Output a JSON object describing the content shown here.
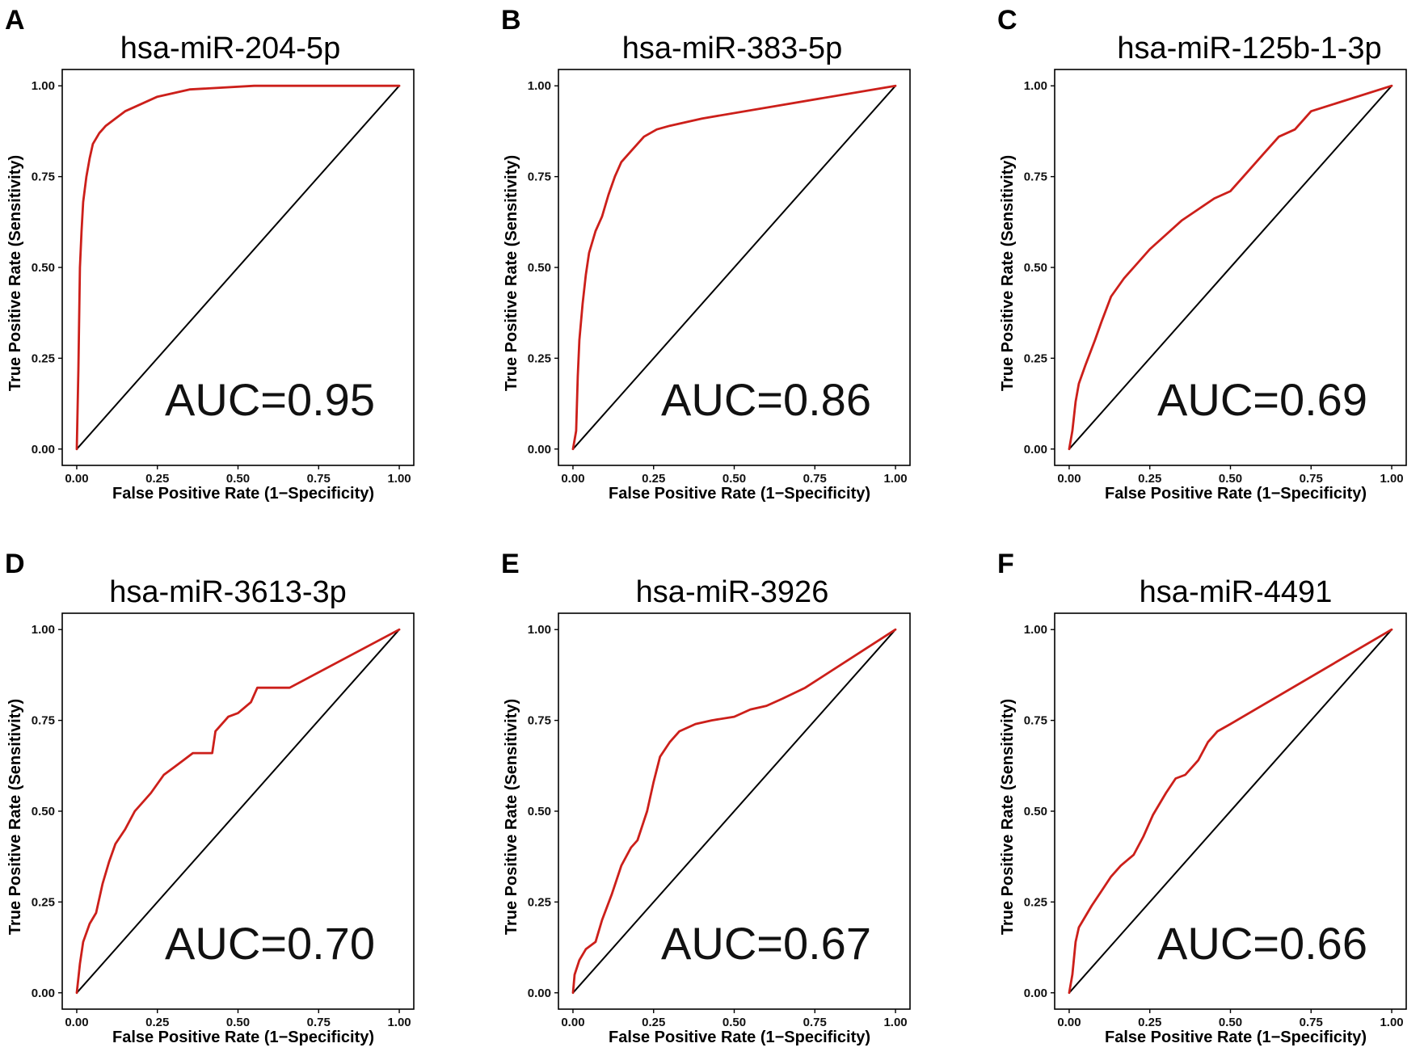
{
  "chart_data": [
    {
      "type": "line",
      "panel": "A",
      "title": "hsa-miR-204-5p",
      "xlabel": "False Positive Rate (1−Specificity)",
      "ylabel": "True Positive Rate (Sensitivity)",
      "xlim": [
        0,
        1
      ],
      "ylim": [
        0,
        1
      ],
      "xticks": [
        "0.00",
        "0.25",
        "0.50",
        "0.75",
        "1.00"
      ],
      "yticks": [
        "0.00",
        "0.25",
        "0.50",
        "0.75",
        "1.00"
      ],
      "annotation": "AUC=0.95",
      "series": [
        {
          "name": "ROC",
          "color": "#cc1f1a",
          "x": [
            0,
            0.005,
            0.01,
            0.015,
            0.02,
            0.03,
            0.04,
            0.05,
            0.07,
            0.09,
            0.12,
            0.15,
            0.2,
            0.25,
            0.3,
            0.35,
            0.55,
            1.0
          ],
          "y": [
            0,
            0.22,
            0.5,
            0.6,
            0.68,
            0.75,
            0.8,
            0.84,
            0.87,
            0.89,
            0.91,
            0.93,
            0.95,
            0.97,
            0.98,
            0.99,
            1.0,
            1.0
          ]
        },
        {
          "name": "Reference",
          "color": "#000000",
          "x": [
            0,
            1
          ],
          "y": [
            0,
            1
          ]
        }
      ]
    },
    {
      "type": "line",
      "panel": "B",
      "title": "hsa-miR-383-5p",
      "xlabel": "False Positive Rate (1−Specificity)",
      "ylabel": "True Positive Rate (Sensitivity)",
      "xlim": [
        0,
        1
      ],
      "ylim": [
        0,
        1
      ],
      "xticks": [
        "0.00",
        "0.25",
        "0.50",
        "0.75",
        "1.00"
      ],
      "yticks": [
        "0.00",
        "0.25",
        "0.50",
        "0.75",
        "1.00"
      ],
      "annotation": "AUC=0.86",
      "series": [
        {
          "name": "ROC",
          "color": "#cc1f1a",
          "x": [
            0,
            0.01,
            0.015,
            0.02,
            0.03,
            0.04,
            0.05,
            0.07,
            0.09,
            0.11,
            0.13,
            0.15,
            0.18,
            0.22,
            0.26,
            0.3,
            0.35,
            0.4,
            1.0
          ],
          "y": [
            0,
            0.05,
            0.2,
            0.3,
            0.4,
            0.48,
            0.54,
            0.6,
            0.64,
            0.7,
            0.75,
            0.79,
            0.82,
            0.86,
            0.88,
            0.89,
            0.9,
            0.91,
            1.0
          ]
        },
        {
          "name": "Reference",
          "color": "#000000",
          "x": [
            0,
            1
          ],
          "y": [
            0,
            1
          ]
        }
      ]
    },
    {
      "type": "line",
      "panel": "C",
      "title": "hsa-miR-125b-1-3p",
      "xlabel": "False Positive Rate (1−Specificity)",
      "ylabel": "True Positive Rate (Sensitivity)",
      "xlim": [
        0,
        1
      ],
      "ylim": [
        0,
        1
      ],
      "xticks": [
        "0.00",
        "0.25",
        "0.50",
        "0.75",
        "1.00"
      ],
      "yticks": [
        "0.00",
        "0.25",
        "0.50",
        "0.75",
        "1.00"
      ],
      "annotation": "AUC=0.69",
      "series": [
        {
          "name": "ROC",
          "color": "#cc1f1a",
          "x": [
            0,
            0.01,
            0.02,
            0.03,
            0.05,
            0.08,
            0.1,
            0.13,
            0.17,
            0.2,
            0.25,
            0.3,
            0.35,
            0.4,
            0.45,
            0.5,
            0.55,
            0.6,
            0.65,
            0.7,
            0.75,
            1.0
          ],
          "y": [
            0,
            0.05,
            0.13,
            0.18,
            0.23,
            0.3,
            0.35,
            0.42,
            0.47,
            0.5,
            0.55,
            0.59,
            0.63,
            0.66,
            0.69,
            0.71,
            0.76,
            0.81,
            0.86,
            0.88,
            0.93,
            1.0
          ]
        },
        {
          "name": "Reference",
          "color": "#000000",
          "x": [
            0,
            1
          ],
          "y": [
            0,
            1
          ]
        }
      ]
    },
    {
      "type": "line",
      "panel": "D",
      "title": "hsa-miR-3613-3p",
      "xlabel": "False Positive Rate (1−Specificity)",
      "ylabel": "True Positive Rate (Sensitivity)",
      "xlim": [
        0,
        1
      ],
      "ylim": [
        0,
        1
      ],
      "xticks": [
        "0.00",
        "0.25",
        "0.50",
        "0.75",
        "1.00"
      ],
      "yticks": [
        "0.00",
        "0.25",
        "0.50",
        "0.75",
        "1.00"
      ],
      "annotation": "AUC=0.70",
      "series": [
        {
          "name": "ROC",
          "color": "#cc1f1a",
          "x": [
            0,
            0.01,
            0.02,
            0.04,
            0.06,
            0.08,
            0.1,
            0.12,
            0.15,
            0.18,
            0.2,
            0.23,
            0.27,
            0.3,
            0.33,
            0.36,
            0.42,
            0.43,
            0.47,
            0.5,
            0.54,
            0.56,
            0.66,
            1.0
          ],
          "y": [
            0,
            0.08,
            0.14,
            0.19,
            0.22,
            0.3,
            0.36,
            0.41,
            0.45,
            0.5,
            0.52,
            0.55,
            0.6,
            0.62,
            0.64,
            0.66,
            0.66,
            0.72,
            0.76,
            0.77,
            0.8,
            0.84,
            0.84,
            1.0
          ]
        },
        {
          "name": "Reference",
          "color": "#000000",
          "x": [
            0,
            1
          ],
          "y": [
            0,
            1
          ]
        }
      ]
    },
    {
      "type": "line",
      "panel": "E",
      "title": "hsa-miR-3926",
      "xlabel": "False Positive Rate (1−Specificity)",
      "ylabel": "True Positive Rate (Sensitivity)",
      "xlim": [
        0,
        1
      ],
      "ylim": [
        0,
        1
      ],
      "xticks": [
        "0.00",
        "0.25",
        "0.50",
        "0.75",
        "1.00"
      ],
      "yticks": [
        "0.00",
        "0.25",
        "0.50",
        "0.75",
        "1.00"
      ],
      "annotation": "AUC=0.67",
      "series": [
        {
          "name": "ROC",
          "color": "#cc1f1a",
          "x": [
            0,
            0.005,
            0.02,
            0.04,
            0.07,
            0.09,
            0.12,
            0.15,
            0.18,
            0.2,
            0.23,
            0.25,
            0.27,
            0.3,
            0.33,
            0.38,
            0.43,
            0.5,
            0.55,
            0.6,
            0.65,
            0.72,
            1.0
          ],
          "y": [
            0,
            0.05,
            0.09,
            0.12,
            0.14,
            0.2,
            0.27,
            0.35,
            0.4,
            0.42,
            0.5,
            0.58,
            0.65,
            0.69,
            0.72,
            0.74,
            0.75,
            0.76,
            0.78,
            0.79,
            0.81,
            0.84,
            1.0
          ]
        },
        {
          "name": "Reference",
          "color": "#000000",
          "x": [
            0,
            1
          ],
          "y": [
            0,
            1
          ]
        }
      ]
    },
    {
      "type": "line",
      "panel": "F",
      "title": "hsa-miR-4491",
      "xlabel": "False Positive Rate (1−Specificity)",
      "ylabel": "True Positive Rate (Sensitivity)",
      "xlim": [
        0,
        1
      ],
      "ylim": [
        0,
        1
      ],
      "xticks": [
        "0.00",
        "0.25",
        "0.50",
        "0.75",
        "1.00"
      ],
      "yticks": [
        "0.00",
        "0.25",
        "0.50",
        "0.75",
        "1.00"
      ],
      "annotation": "AUC=0.66",
      "series": [
        {
          "name": "ROC",
          "color": "#cc1f1a",
          "x": [
            0,
            0.01,
            0.02,
            0.03,
            0.05,
            0.07,
            0.1,
            0.13,
            0.16,
            0.2,
            0.23,
            0.26,
            0.3,
            0.33,
            0.36,
            0.4,
            0.43,
            0.46,
            0.5,
            1.0
          ],
          "y": [
            0,
            0.05,
            0.14,
            0.18,
            0.21,
            0.24,
            0.28,
            0.32,
            0.35,
            0.38,
            0.43,
            0.49,
            0.55,
            0.59,
            0.6,
            0.64,
            0.69,
            0.72,
            0.74,
            1.0
          ]
        },
        {
          "name": "Reference",
          "color": "#000000",
          "x": [
            0,
            1
          ],
          "y": [
            0,
            1
          ]
        }
      ]
    }
  ]
}
